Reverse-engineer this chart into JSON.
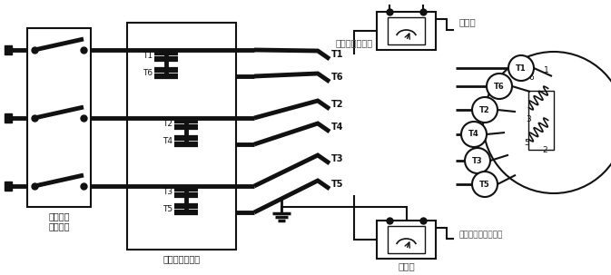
{
  "bg_color": "#ffffff",
  "lc": "#111111",
  "gray": "#888888",
  "labels": {
    "main_breaker": "主断路器\n（开启）",
    "starter": "启动器（开启）",
    "winding_resistance": "绕组之间的电阙",
    "megohmmeter_top": "兆欧表",
    "megohmmeter_bottom": "兆欧表",
    "ground_resistance": "每个绕组的对地电阙"
  }
}
